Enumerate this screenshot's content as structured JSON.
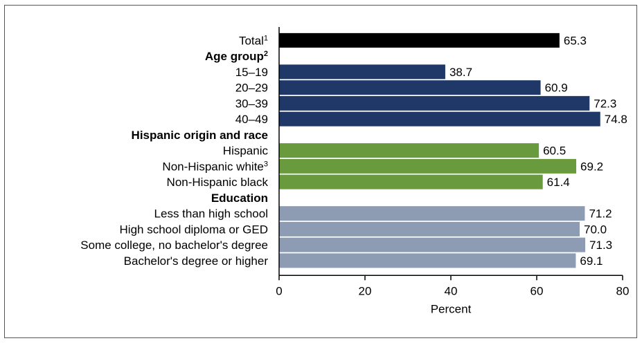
{
  "chart_data": {
    "type": "bar",
    "orientation": "horizontal",
    "xlabel": "Percent",
    "xlim": [
      0,
      80
    ],
    "xticks": [
      "0",
      "20",
      "40",
      "60",
      "80"
    ],
    "grid": false,
    "rows": [
      {
        "kind": "bar",
        "label": "Total",
        "sup": "1",
        "value": 65.3,
        "value_label": "65.3",
        "color": "#000000"
      },
      {
        "kind": "group",
        "label": "Age group",
        "sup": "2"
      },
      {
        "kind": "bar",
        "label": "15–19",
        "value": 38.7,
        "value_label": "38.7",
        "color": "#1f3868"
      },
      {
        "kind": "bar",
        "label": "20–29",
        "value": 60.9,
        "value_label": "60.9",
        "color": "#1f3868"
      },
      {
        "kind": "bar",
        "label": "30–39",
        "value": 72.3,
        "value_label": "72.3",
        "color": "#1f3868"
      },
      {
        "kind": "bar",
        "label": "40–49",
        "value": 74.8,
        "value_label": "74.8",
        "color": "#1f3868"
      },
      {
        "kind": "group",
        "label": "Hispanic origin and race"
      },
      {
        "kind": "bar",
        "label": "Hispanic",
        "value": 60.5,
        "value_label": "60.5",
        "color": "#6a9a3e"
      },
      {
        "kind": "bar",
        "label": "Non-Hispanic white",
        "sup": "3",
        "value": 69.2,
        "value_label": "69.2",
        "color": "#6a9a3e"
      },
      {
        "kind": "bar",
        "label": "Non-Hispanic black",
        "value": 61.4,
        "value_label": "61.4",
        "color": "#6a9a3e"
      },
      {
        "kind": "group",
        "label": "Education"
      },
      {
        "kind": "bar",
        "label": "Less than high school",
        "value": 71.2,
        "value_label": "71.2",
        "color": "#8e9cb3"
      },
      {
        "kind": "bar",
        "label": "High school diploma or GED",
        "value": 70.0,
        "value_label": "70.0",
        "color": "#8e9cb3"
      },
      {
        "kind": "bar",
        "label": "Some college, no bachelor's degree",
        "value": 71.3,
        "value_label": "71.3",
        "color": "#8e9cb3"
      },
      {
        "kind": "bar",
        "label": "Bachelor's degree or higher",
        "value": 69.1,
        "value_label": "69.1",
        "color": "#8e9cb3"
      }
    ]
  }
}
